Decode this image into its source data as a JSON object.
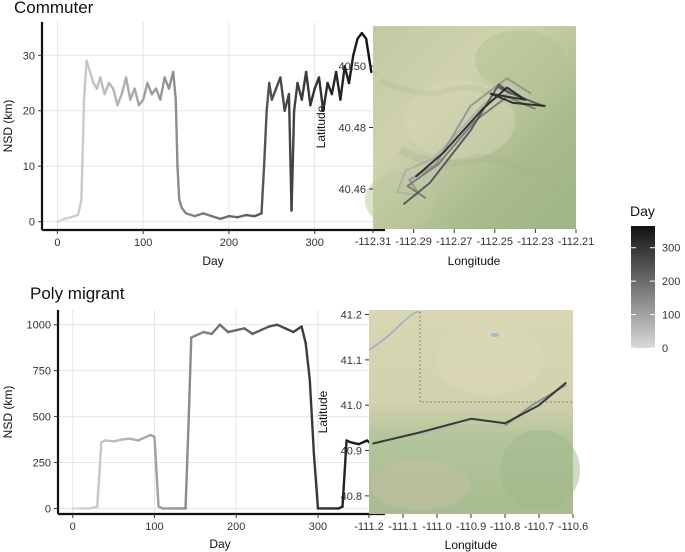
{
  "panels": {
    "commuter_title": "Commuter",
    "poly_title": "Poly migrant"
  },
  "legend": {
    "title": "Day",
    "ticks": [
      "300",
      "200",
      "100",
      "0"
    ],
    "tick_values": [
      300,
      200,
      100,
      0
    ],
    "range": [
      0,
      365
    ],
    "color_low": "#d9d9d9",
    "color_high": "#111111"
  },
  "chart_data": [
    {
      "id": "commuter-nsd",
      "type": "line",
      "title": "Commuter",
      "xlabel": "Day",
      "ylabel": "NSD (km)",
      "xlim": [
        -18,
        382
      ],
      "ylim": [
        -1.5,
        36
      ],
      "xticks": [
        0,
        100,
        200,
        300
      ],
      "xtick_labels": [
        "0",
        "100",
        "200",
        "300"
      ],
      "yticks": [
        0,
        10,
        20,
        30
      ],
      "ytick_labels": [
        "0",
        "10",
        "20",
        "30"
      ],
      "grid": true,
      "color_by": "day",
      "series": [
        {
          "x": [
            0,
            8,
            16,
            24,
            28,
            31,
            34,
            38,
            42,
            46,
            50,
            55,
            60,
            65,
            70,
            75,
            80,
            85,
            90,
            95,
            100,
            105,
            110,
            115,
            120,
            125,
            130,
            135,
            138,
            140,
            142,
            145,
            150,
            160,
            170,
            180,
            190,
            200,
            210,
            220,
            230,
            238,
            241,
            244,
            247,
            250,
            255,
            260,
            265,
            270,
            273,
            276,
            280,
            285,
            290,
            295,
            300,
            305,
            310,
            315,
            320,
            325,
            330,
            335,
            340,
            345,
            350,
            355,
            360,
            363,
            366
          ],
          "y": [
            0,
            0.5,
            0.8,
            1.2,
            4,
            22,
            29,
            27,
            25,
            24,
            26,
            23,
            25,
            24,
            21,
            23,
            26,
            22,
            24,
            21,
            22,
            25,
            23,
            24,
            22,
            26,
            24,
            27,
            22,
            10,
            4,
            2.5,
            1.5,
            1,
            1.5,
            1,
            0.5,
            1,
            0.8,
            1.2,
            1,
            1.5,
            10,
            20,
            25,
            22,
            24,
            26,
            20,
            23,
            2,
            20,
            25,
            22,
            27,
            21,
            24,
            26,
            20,
            25,
            23,
            27,
            22,
            28,
            25,
            30,
            33,
            34,
            33,
            30,
            27
          ]
        }
      ]
    },
    {
      "id": "commuter-map",
      "type": "line",
      "xlabel": "Longitude",
      "ylabel": "Latitude",
      "xlim": [
        -112.31,
        -112.21
      ],
      "ylim": [
        40.447,
        40.513
      ],
      "xticks": [
        -112.31,
        -112.29,
        -112.27,
        -112.25,
        -112.23,
        -112.21
      ],
      "xtick_labels": [
        "-112.31",
        "-112.29",
        "-112.27",
        "-112.25",
        "-112.23",
        "-112.21"
      ],
      "yticks": [
        40.46,
        40.48,
        40.5
      ],
      "ytick_labels": [
        "40.46",
        "40.48",
        "40.50"
      ],
      "color_by": "day",
      "series": [
        {
          "name": "track-1",
          "day": 40,
          "lon": [
            -112.296,
            -112.29,
            -112.285,
            -112.262,
            -112.258,
            -112.246,
            -112.24
          ],
          "lat": [
            40.462,
            40.465,
            40.461,
            40.478,
            40.484,
            40.495,
            40.492
          ]
        },
        {
          "name": "track-2",
          "day": 80,
          "lon": [
            -112.24,
            -112.255,
            -112.266,
            -112.28,
            -112.294,
            -112.298,
            -112.288
          ],
          "lat": [
            40.492,
            40.488,
            40.48,
            40.47,
            40.466,
            40.459,
            40.458
          ]
        },
        {
          "name": "track-3",
          "day": 130,
          "lon": [
            -112.288,
            -112.292,
            -112.279,
            -112.262,
            -112.244,
            -112.232
          ],
          "lat": [
            40.459,
            40.463,
            40.468,
            40.487,
            40.496,
            40.491
          ]
        },
        {
          "name": "track-4",
          "day": 180,
          "lon": [
            -112.23,
            -112.244,
            -112.26,
            -112.278,
            -112.293,
            -112.284
          ],
          "lat": [
            40.486,
            40.49,
            40.482,
            40.468,
            40.461,
            40.457
          ]
        },
        {
          "name": "track-5",
          "day": 250,
          "lon": [
            -112.295,
            -112.282,
            -112.262,
            -112.248,
            -112.242,
            -112.248,
            -112.238,
            -112.226
          ],
          "lat": [
            40.455,
            40.462,
            40.479,
            40.494,
            40.491,
            40.493,
            40.49,
            40.487
          ]
        },
        {
          "name": "track-6",
          "day": 330,
          "lon": [
            -112.289,
            -112.275,
            -112.256,
            -112.244,
            -112.235,
            -112.252,
            -112.241,
            -112.225
          ],
          "lat": [
            40.464,
            40.472,
            40.486,
            40.493,
            40.489,
            40.491,
            40.488,
            40.487
          ]
        }
      ]
    },
    {
      "id": "poly-nsd",
      "type": "line",
      "title": "Poly migrant",
      "xlabel": "Day",
      "ylabel": "NSD (km)",
      "xlim": [
        -18,
        382
      ],
      "ylim": [
        -30,
        1080
      ],
      "xticks": [
        0,
        100,
        200,
        300
      ],
      "xtick_labels": [
        "0",
        "100",
        "200",
        "300"
      ],
      "yticks": [
        0,
        250,
        500,
        750,
        1000
      ],
      "ytick_labels": [
        "0",
        "250",
        "500",
        "750",
        "1000"
      ],
      "grid": true,
      "color_by": "day",
      "series": [
        {
          "x": [
            0,
            10,
            20,
            30,
            35,
            40,
            50,
            60,
            70,
            80,
            90,
            95,
            100,
            105,
            110,
            120,
            130,
            138,
            142,
            145,
            150,
            160,
            170,
            180,
            190,
            200,
            210,
            220,
            230,
            240,
            250,
            260,
            270,
            280,
            285,
            290,
            295,
            300,
            305,
            315,
            325,
            330,
            335,
            340,
            350,
            360,
            368
          ],
          "y": [
            0,
            0,
            0,
            10,
            360,
            370,
            365,
            375,
            380,
            370,
            390,
            400,
            390,
            10,
            0,
            0,
            0,
            0,
            500,
            930,
            940,
            960,
            950,
            1000,
            960,
            970,
            980,
            950,
            970,
            990,
            1000,
            980,
            960,
            990,
            900,
            700,
            300,
            0,
            0,
            0,
            0,
            10,
            370,
            360,
            350,
            370,
            340
          ]
        }
      ]
    },
    {
      "id": "poly-map",
      "type": "line",
      "xlabel": "Longitude",
      "ylabel": "Latitude",
      "xlim": [
        -111.2,
        -110.6
      ],
      "ylim": [
        40.76,
        41.21
      ],
      "xticks": [
        -111.2,
        -111.1,
        -111.0,
        -110.9,
        -110.8,
        -110.7,
        -110.6
      ],
      "xtick_labels": [
        "-111.2",
        "-111.1",
        "-111.0",
        "-110.9",
        "-110.8",
        "-110.7",
        "-110.6"
      ],
      "yticks": [
        40.8,
        40.9,
        41.0,
        41.1,
        41.2
      ],
      "ytick_labels": [
        "40.8",
        "40.9",
        "41.0",
        "41.1",
        "41.2"
      ],
      "color_by": "day",
      "series": [
        {
          "name": "route-out",
          "day": 60,
          "lon": [
            -111.19,
            -111.05,
            -110.95,
            -110.8
          ],
          "lat": [
            40.915,
            40.935,
            40.955,
            40.955
          ]
        },
        {
          "name": "route-mid",
          "day": 150,
          "lon": [
            -110.8,
            -110.72,
            -110.62
          ],
          "lat": [
            40.955,
            41.0,
            41.045
          ]
        },
        {
          "name": "route-back",
          "day": 320,
          "lon": [
            -110.62,
            -110.7,
            -110.8,
            -110.9,
            -111.05,
            -111.19
          ],
          "lat": [
            41.05,
            41.0,
            40.96,
            40.97,
            40.94,
            40.915
          ]
        }
      ]
    }
  ]
}
